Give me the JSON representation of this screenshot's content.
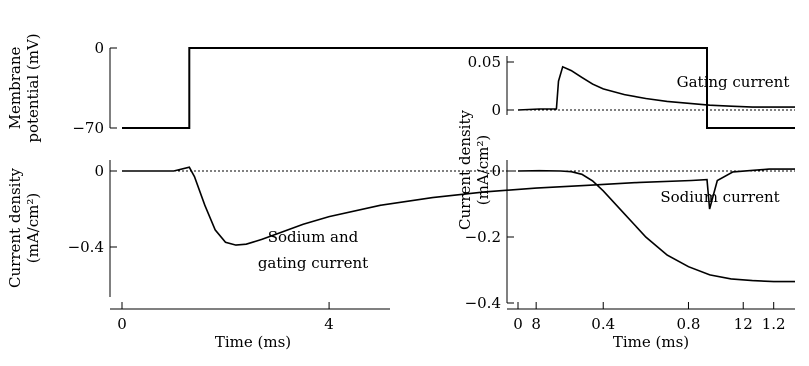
{
  "chart_data": [
    {
      "id": "membrane_potential",
      "type": "line",
      "ylabel_line1": "Membrane",
      "ylabel_line2": "potential (mV)",
      "yticks": [
        {
          "value": 0,
          "label": "0"
        },
        {
          "value": -70,
          "label": "−70"
        }
      ],
      "ylim": [
        -70,
        0
      ],
      "xlim": [
        0,
        13
      ],
      "series": [
        {
          "x": [
            0,
            1.3,
            1.3,
            11.3,
            11.3,
            13
          ],
          "y": [
            -70,
            -70,
            0,
            0,
            -70,
            -70
          ]
        }
      ]
    },
    {
      "id": "current_density_left",
      "type": "line",
      "ylabel_line1": "Current density",
      "ylabel_line2": "(mA/cm²)",
      "xlabel": "Time (ms)",
      "xlim": [
        0,
        13
      ],
      "ylim": [
        -0.62,
        0.02
      ],
      "xticks": [
        {
          "value": 0,
          "label": "0"
        },
        {
          "value": 4,
          "label": "4"
        },
        {
          "value": 8,
          "label": "8"
        },
        {
          "value": 12,
          "label": "12"
        }
      ],
      "yticks": [
        {
          "value": 0,
          "label": "0"
        },
        {
          "value": -0.4,
          "label": "−0.4"
        }
      ],
      "annotation_line1": "Sodium and",
      "annotation_line2": "gating current",
      "grid": false,
      "series": [
        {
          "x": [
            0,
            1.0,
            1.3,
            1.4,
            1.6,
            1.8,
            2.0,
            2.2,
            2.4,
            2.7,
            3.0,
            3.5,
            4.0,
            5.0,
            6.0,
            7.0,
            8.0,
            9.0,
            10.0,
            11.0,
            11.3,
            11.35,
            11.5,
            11.8,
            12.5,
            13
          ],
          "y": [
            0,
            0,
            0.02,
            -0.03,
            -0.18,
            -0.31,
            -0.375,
            -0.39,
            -0.385,
            -0.36,
            -0.33,
            -0.28,
            -0.24,
            -0.18,
            -0.14,
            -0.11,
            -0.09,
            -0.075,
            -0.06,
            -0.05,
            -0.045,
            -0.2,
            -0.05,
            -0.005,
            0.01,
            0.01
          ]
        }
      ]
    },
    {
      "id": "gating_current",
      "type": "line",
      "xlim": [
        0,
        1.3
      ],
      "ylim": [
        -0.004,
        0.058
      ],
      "yticks": [
        {
          "value": 0,
          "label": "0"
        },
        {
          "value": 0.05,
          "label": "0.05"
        }
      ],
      "annotation": "Gating current",
      "series": [
        {
          "x": [
            0,
            0.1,
            0.18,
            0.19,
            0.21,
            0.25,
            0.3,
            0.35,
            0.4,
            0.5,
            0.6,
            0.7,
            0.8,
            0.9,
            1.0,
            1.1,
            1.2,
            1.3
          ],
          "y": [
            0,
            0.001,
            0.001,
            0.03,
            0.045,
            0.041,
            0.034,
            0.027,
            0.022,
            0.016,
            0.012,
            0.009,
            0.007,
            0.005,
            0.004,
            0.003,
            0.003,
            0.003
          ]
        }
      ]
    },
    {
      "id": "sodium_current",
      "type": "line",
      "ylabel_line1": "Current density",
      "ylabel_line2": "(mA/cm²)",
      "xlabel": "Time (ms)",
      "xlim": [
        0,
        1.3
      ],
      "ylim": [
        -0.38,
        0.02
      ],
      "xticks": [
        {
          "value": 0,
          "label": "0"
        },
        {
          "value": 0.4,
          "label": "0.4"
        },
        {
          "value": 0.8,
          "label": "0.8"
        },
        {
          "value": 1.2,
          "label": "1.2"
        }
      ],
      "yticks": [
        {
          "value": 0,
          "label": "0"
        },
        {
          "value": -0.2,
          "label": "−0.2"
        },
        {
          "value": -0.4,
          "label": "−0.4"
        }
      ],
      "annotation": "Sodium current",
      "series": [
        {
          "x": [
            0,
            0.1,
            0.2,
            0.25,
            0.3,
            0.35,
            0.4,
            0.5,
            0.6,
            0.7,
            0.8,
            0.9,
            1.0,
            1.1,
            1.2,
            1.3
          ],
          "y": [
            0,
            0.001,
            0,
            -0.002,
            -0.01,
            -0.03,
            -0.06,
            -0.13,
            -0.2,
            -0.255,
            -0.29,
            -0.315,
            -0.327,
            -0.332,
            -0.335,
            -0.335
          ]
        }
      ]
    }
  ]
}
